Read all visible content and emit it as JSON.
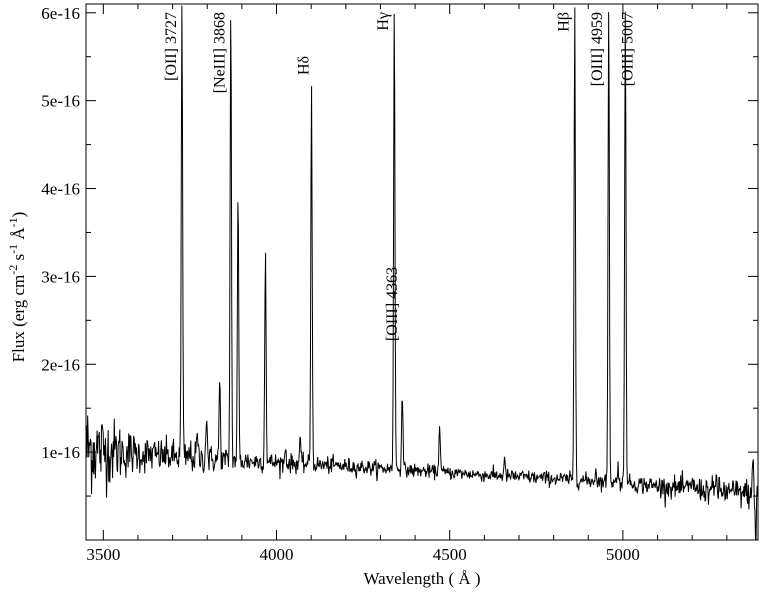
{
  "chart_data": {
    "type": "line",
    "title": "",
    "xlabel": "Wavelength  ( Å )",
    "ylabel": "Flux (erg cm",
    "ylabel_parts": {
      "main": "Flux (erg cm",
      "sup1": "-2",
      "mid1": " s",
      "sup2": "-1",
      "mid2": " Å",
      "sup3": "-1",
      "end": ")"
    },
    "xlim": [
      3450,
      5390
    ],
    "ylim": [
      0,
      6.1e-16
    ],
    "x_ticks": [
      3500,
      4000,
      4500,
      5000
    ],
    "x_tick_labels": [
      "3500",
      "4000",
      "4500",
      "5000"
    ],
    "y_ticks": [
      1e-16,
      2e-16,
      3e-16,
      4e-16,
      5e-16,
      6e-16
    ],
    "y_tick_labels": [
      "1e-16",
      "2e-16",
      "3e-16",
      "4e-16",
      "5e-16",
      "6e-16"
    ],
    "grid": false,
    "line_color": "#000000",
    "continuum": {
      "x": [
        3450,
        3600,
        3800,
        4000,
        4200,
        4400,
        4600,
        4800,
        5000,
        5200,
        5390
      ],
      "y": [
        1.05e-16,
        9.8e-17,
        9.2e-17,
        8.8e-17,
        8.4e-17,
        7.9e-17,
        7.4e-17,
        7e-17,
        6.5e-17,
        5.8e-17,
        5.2e-17
      ]
    },
    "noise_amplitude": [
      {
        "x": 3450,
        "amp": 3e-17
      },
      {
        "x": 3600,
        "amp": 1.2e-17
      },
      {
        "x": 4000,
        "amp": 6e-18
      },
      {
        "x": 4500,
        "amp": 4e-18
      },
      {
        "x": 5000,
        "amp": 5e-18
      },
      {
        "x": 5390,
        "amp": 1e-17
      }
    ],
    "emission_lines": [
      {
        "x": 3727,
        "peak": 6.1e-16
      },
      {
        "x": 3750,
        "peak": 1e-16
      },
      {
        "x": 3771,
        "peak": 1.2e-16
      },
      {
        "x": 3798,
        "peak": 1.45e-16
      },
      {
        "x": 3836,
        "peak": 1.82e-16
      },
      {
        "x": 3868,
        "peak": 6.1e-16
      },
      {
        "x": 3889,
        "peak": 3.9e-16
      },
      {
        "x": 3968,
        "peak": 3.32e-16
      },
      {
        "x": 4026,
        "peak": 1.05e-16
      },
      {
        "x": 4068,
        "peak": 1.15e-16
      },
      {
        "x": 4101,
        "peak": 5.2e-16
      },
      {
        "x": 4340,
        "peak": 6.1e-16
      },
      {
        "x": 4363,
        "peak": 1.72e-16
      },
      {
        "x": 4471,
        "peak": 1.35e-16
      },
      {
        "x": 4658,
        "peak": 9.2e-17
      },
      {
        "x": 4861,
        "peak": 6.1e-16
      },
      {
        "x": 4922,
        "peak": 8e-17
      },
      {
        "x": 4959,
        "peak": 6.1e-16
      },
      {
        "x": 4986,
        "peak": 8.5e-17
      },
      {
        "x": 5007,
        "peak": 6.1e-16
      },
      {
        "x": 5200,
        "peak": 7.5e-17
      },
      {
        "x": 5270,
        "peak": 7.2e-17
      },
      {
        "x": 5376,
        "peak": 8.7e-17
      }
    ],
    "absorption_dips": [
      {
        "x": 5383,
        "depth": 2e-18
      }
    ],
    "annotations": [
      {
        "text": "[OII] 3727",
        "x": 3710,
        "y_top": 6.1e-16,
        "rotate": -90
      },
      {
        "text": "[NeIII] 3868",
        "x": 3850,
        "y_top": 6.1e-16,
        "rotate": -90
      },
      {
        "text": "Hδ",
        "x": 4092,
        "y_top": 5.6e-16,
        "rotate": -90
      },
      {
        "text": "Hγ",
        "x": 4322,
        "y_top": 6.1e-16,
        "rotate": -90
      },
      {
        "text": "[OIII] 4363",
        "x": 4348,
        "y_top": 3.2e-16,
        "rotate": -90
      },
      {
        "text": "Hβ",
        "x": 4843,
        "y_top": 6.1e-16,
        "rotate": -90
      },
      {
        "text": "[OIII] 4959",
        "x": 4940,
        "y_top": 6.1e-16,
        "rotate": -90
      },
      {
        "text": "[OIII] 5007",
        "x": 5028,
        "y_top": 6.1e-16,
        "rotate": -90
      }
    ]
  }
}
